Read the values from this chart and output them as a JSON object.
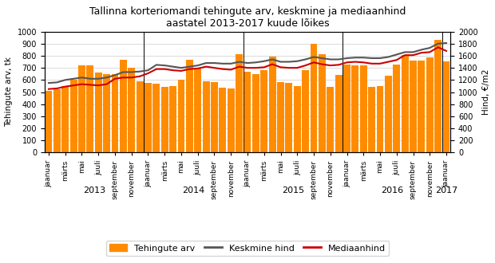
{
  "title": "Tallinna korteriomandi tehingute arv, keskmine ja mediaanhind\naastatel 2013-2017 kuude lõikes",
  "ylabel_left": "Tehingute arv, tk",
  "ylabel_right": "Hind, €/m2",
  "ylim_left": [
    0,
    1000
  ],
  "ylim_right": [
    0,
    2000
  ],
  "bar_color": "#FF8C00",
  "line_keskmine_color": "#555555",
  "line_median_color": "#CC0000",
  "tehingute_arv": [
    510,
    525,
    550,
    600,
    720,
    720,
    660,
    650,
    650,
    770,
    700,
    590,
    575,
    570,
    545,
    550,
    600,
    770,
    700,
    590,
    580,
    535,
    530,
    810,
    670,
    650,
    680,
    790,
    580,
    575,
    550,
    680,
    900,
    810,
    545,
    640,
    730,
    720,
    720,
    540,
    550,
    635,
    725,
    805,
    760,
    760,
    785,
    930,
    755
  ],
  "keskmine_hind": [
    1150,
    1160,
    1200,
    1220,
    1240,
    1220,
    1220,
    1240,
    1280,
    1330,
    1330,
    1340,
    1360,
    1450,
    1440,
    1420,
    1400,
    1420,
    1440,
    1480,
    1480,
    1470,
    1470,
    1500,
    1480,
    1490,
    1510,
    1540,
    1500,
    1500,
    1510,
    1540,
    1580,
    1560,
    1540,
    1540,
    1560,
    1570,
    1570,
    1560,
    1560,
    1580,
    1620,
    1660,
    1660,
    1700,
    1730,
    1800,
    1810
  ],
  "mediaanhind": [
    1050,
    1060,
    1090,
    1110,
    1130,
    1120,
    1110,
    1130,
    1220,
    1240,
    1240,
    1260,
    1310,
    1380,
    1380,
    1360,
    1350,
    1380,
    1390,
    1420,
    1400,
    1380,
    1370,
    1420,
    1400,
    1400,
    1410,
    1460,
    1410,
    1400,
    1400,
    1440,
    1490,
    1460,
    1440,
    1450,
    1490,
    1500,
    1490,
    1470,
    1470,
    1500,
    1530,
    1610,
    1610,
    1650,
    1660,
    1740,
    1680
  ],
  "legend_labels": [
    "Tehingute arv",
    "Keskmine hind",
    "Mediaanhind"
  ],
  "year_labels": [
    "2013",
    "2014",
    "2015",
    "2016",
    "2017"
  ],
  "year_tick_positions": [
    5.5,
    17.5,
    29.5,
    41.5,
    48.0
  ],
  "month_tick_positions": [
    0,
    2,
    4,
    6,
    8,
    10,
    12,
    14,
    16,
    18,
    20,
    22,
    24,
    26,
    28,
    30,
    32,
    34,
    36,
    38,
    40,
    42,
    44,
    46,
    48
  ],
  "month_tick_labels": [
    "jaanuar",
    "märts",
    "mai",
    "juuli",
    "september",
    "november",
    "jaanuar",
    "märts",
    "mai",
    "juuli",
    "september",
    "november",
    "jaanuar",
    "märts",
    "mai",
    "juuli",
    "september",
    "november",
    "jaanuar",
    "märts",
    "mai",
    "juuli",
    "september",
    "november",
    "jaanuar"
  ],
  "year_separators": [
    11.5,
    23.5,
    35.5,
    47.5
  ]
}
